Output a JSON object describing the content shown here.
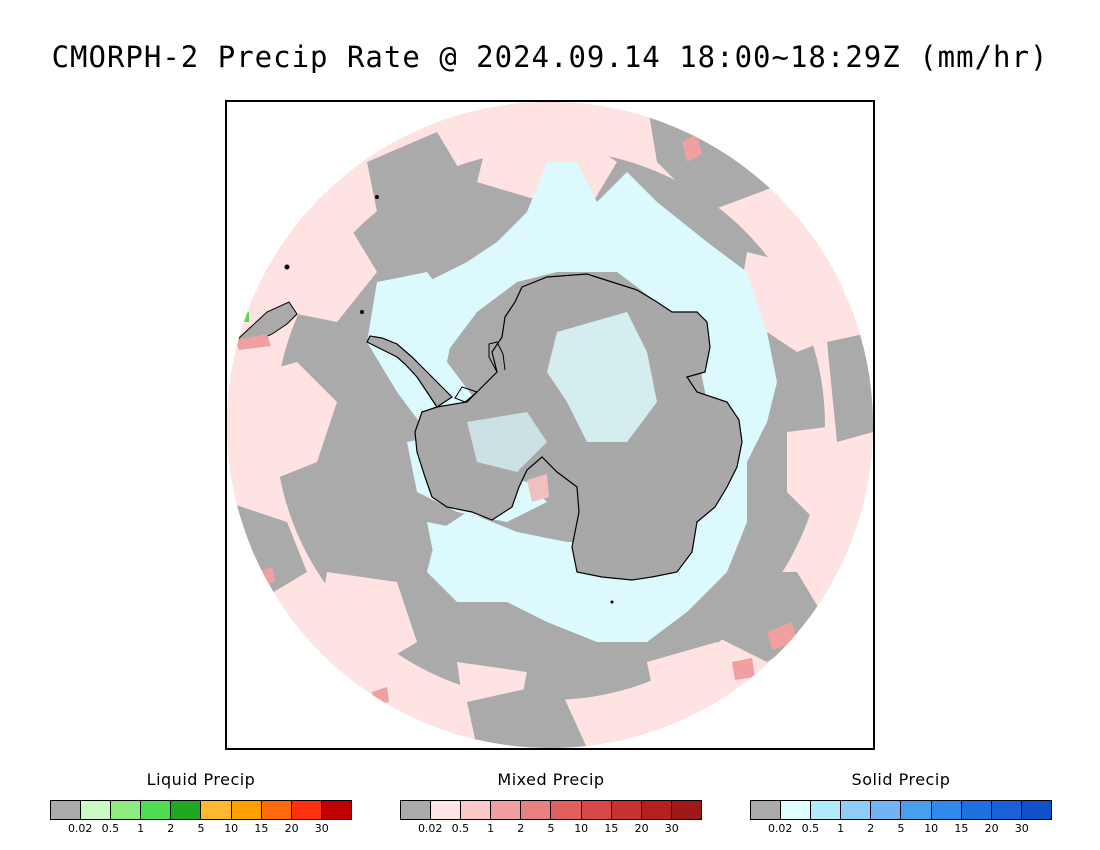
{
  "title": "CMORPH-2 Precip Rate @ 2024.09.14 18:00~18:29Z (mm/hr)",
  "map": {
    "projection": "south-polar-stereographic",
    "colors": {
      "no_precip_gray": "#aaaaaa",
      "mixed_light": "#ffe2e2",
      "solid_light": "#dcfafd",
      "mixed_medium": "#f0a0a0",
      "liquid_green": "#55dd55",
      "coastline": "#000000"
    }
  },
  "legends": [
    {
      "title": "Liquid Precip",
      "colors": [
        "#aaaaaa",
        "#c8fcc0",
        "#90ec80",
        "#50dd50",
        "#20a820",
        "#ffb830",
        "#ffa000",
        "#ff6a0a",
        "#ff3010",
        "#c00000"
      ],
      "ticks": [
        "0.02",
        "0.5",
        "1",
        "2",
        "5",
        "10",
        "15",
        "20",
        "30"
      ]
    },
    {
      "title": "Mixed Precip",
      "colors": [
        "#aaaaaa",
        "#ffe4e4",
        "#fcc8c8",
        "#f0a0a0",
        "#e88080",
        "#e06060",
        "#d84848",
        "#c83232",
        "#b42020",
        "#a01818"
      ],
      "ticks": [
        "0.02",
        "0.5",
        "1",
        "2",
        "5",
        "10",
        "15",
        "20",
        "30"
      ]
    },
    {
      "title": "Solid Precip",
      "colors": [
        "#aaaaaa",
        "#e0ffff",
        "#b0ecfa",
        "#90ccf8",
        "#70b4f4",
        "#4a9ef0",
        "#3088ec",
        "#2070e0",
        "#1a60d8",
        "#1050c8"
      ],
      "ticks": [
        "0.02",
        "0.5",
        "1",
        "2",
        "5",
        "10",
        "15",
        "20",
        "30"
      ]
    }
  ]
}
